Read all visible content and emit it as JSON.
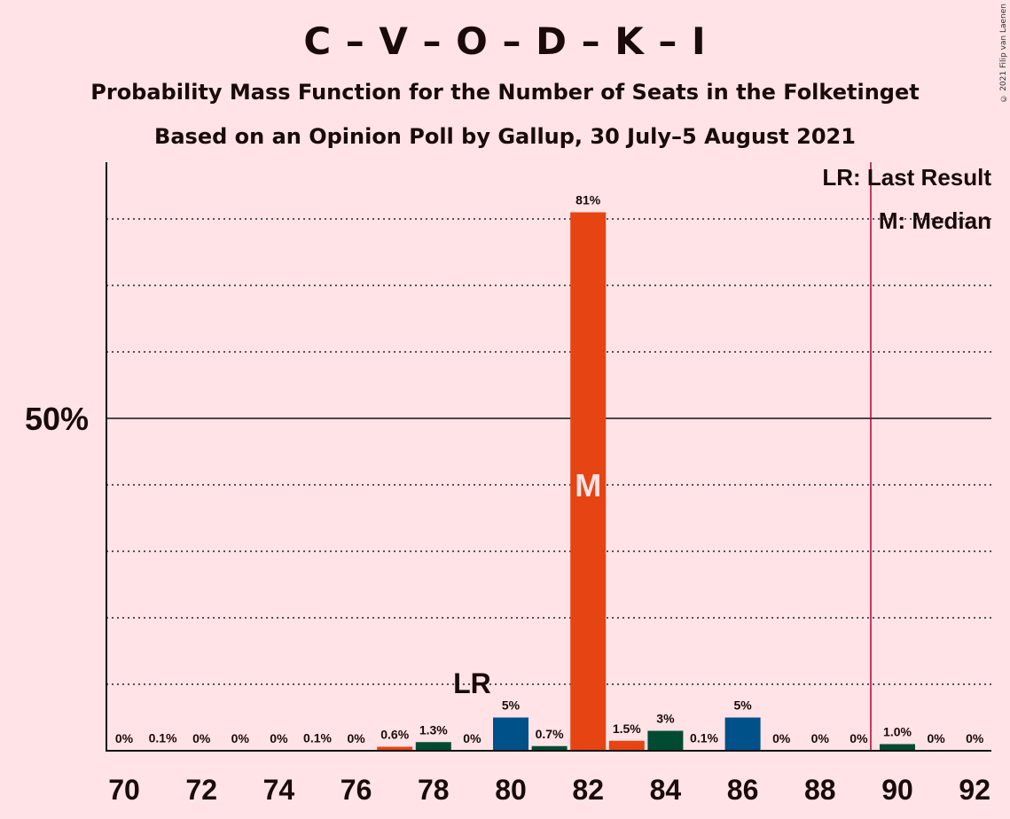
{
  "header": {
    "title": "C – V – O – D – K – I",
    "subtitle": "Probability Mass Function for the Number of Seats in the Folketinget",
    "subtitle2": "Based on an Opinion Poll by Gallup, 30 July–5 August 2021",
    "copyright": "© 2021 Filip van Laenen"
  },
  "legend": {
    "last_result": "LR: Last Result",
    "median": "M: Median"
  },
  "markers": {
    "last_result_label": "LR",
    "median_label": "M"
  },
  "colors": {
    "background": "#FFE3E6",
    "orange": "#E64412",
    "blue": "#00508A",
    "green": "#004B32",
    "majority_line": "#B2003A"
  },
  "chart_data": {
    "type": "bar",
    "x": [
      70,
      71,
      72,
      73,
      74,
      75,
      76,
      77,
      78,
      79,
      80,
      81,
      82,
      83,
      84,
      85,
      86,
      87,
      88,
      89,
      90,
      91,
      92
    ],
    "values": [
      0,
      0.1,
      0,
      0,
      0,
      0.1,
      0,
      0.6,
      1.3,
      0,
      5,
      0.7,
      81,
      1.5,
      3,
      0.1,
      5,
      0,
      0,
      0,
      1.0,
      0,
      0
    ],
    "labels": [
      "0%",
      "0.1%",
      "0%",
      "0%",
      "0%",
      "0.1%",
      "0%",
      "0.6%",
      "1.3%",
      "0%",
      "5%",
      "0.7%",
      "81%",
      "1.5%",
      "3%",
      "0.1%",
      "5%",
      "0%",
      "0%",
      "0%",
      "1.0%",
      "0%",
      "0%"
    ],
    "bar_colors": [
      "orange",
      "blue",
      "green",
      "orange",
      "blue",
      "green",
      "orange",
      "orange",
      "green",
      "orange",
      "blue",
      "green",
      "orange",
      "orange",
      "green",
      "blue",
      "blue",
      "green",
      "orange",
      "blue",
      "green",
      "orange",
      "blue"
    ],
    "x_ticks": [
      70,
      72,
      74,
      76,
      78,
      80,
      82,
      84,
      86,
      88,
      90,
      92
    ],
    "y_tick_label": "50%",
    "y_tick_value": 50,
    "gridlines": [
      10,
      20,
      30,
      40,
      60,
      70,
      80
    ],
    "ylim": [
      0,
      88
    ],
    "median": 82,
    "last_result": 79,
    "majority": 90,
    "legend_position": "top-right"
  }
}
